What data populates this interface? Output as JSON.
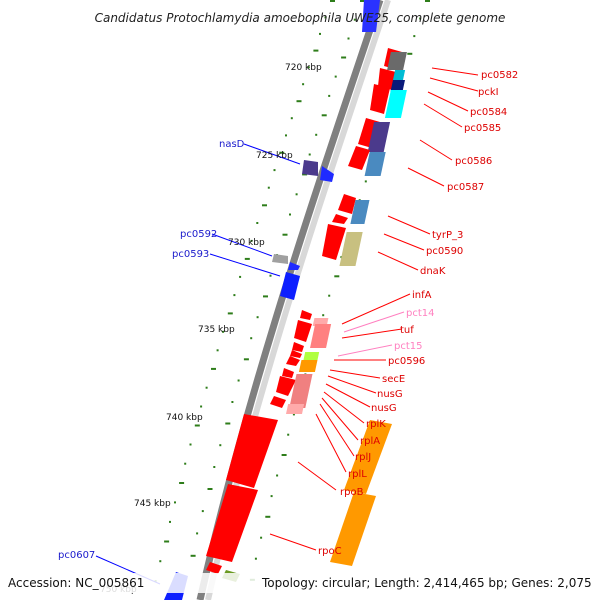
{
  "title": "Candidatus Protochlamydia amoebophila UWE25, complete genome",
  "footer": {
    "accession": "Accession: NC_005861",
    "topology": "Topology: circular; Length: 2,414,465 bp; Genes: 2,075"
  },
  "kbp_labels": [
    "720 kbp",
    "725 kbp",
    "730 kbp",
    "735 kbp",
    "740 kbp",
    "745 kbp",
    "750 kbp"
  ],
  "reverse_labels": [
    "nasD",
    "pc0592",
    "pc0593",
    "pc0607"
  ],
  "forward_labels": [
    "pc0582",
    "pckI",
    "pc0584",
    "pc0585",
    "pc0586",
    "pc0587",
    "tyrP_3",
    "pc0590",
    "dnaK",
    "infA",
    "pct14",
    "tuf",
    "pct15",
    "pc0596",
    "secE",
    "nusG",
    "nusG",
    "rplK",
    "rplA",
    "rplJ",
    "rplL",
    "rpoB",
    "rpoC"
  ],
  "colors": {
    "forward_gene": "#ff0000",
    "reverse_gene": "#0000ff",
    "trna_label": "#ff80c0",
    "gc_skew": "#2e7d1a",
    "backbone": "#808080"
  }
}
